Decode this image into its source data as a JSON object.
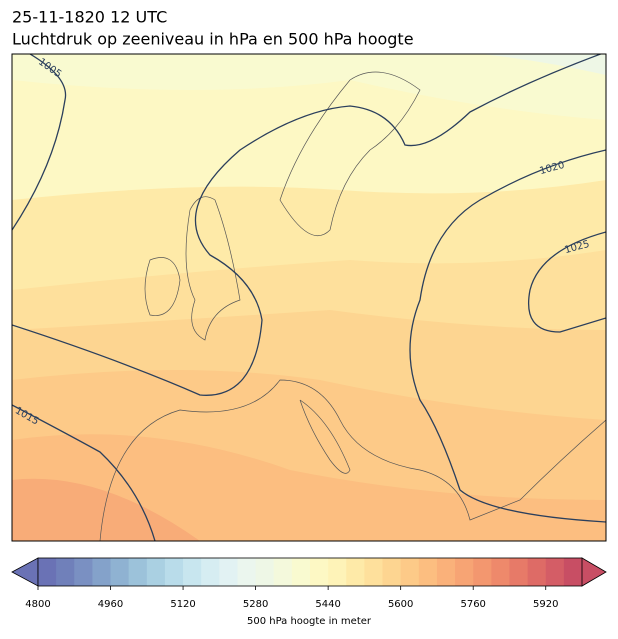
{
  "header": {
    "line1": "25-11-1820 12 UTC",
    "line2": "Luchtdruk op zeeniveau in hPa en 500 hPa hoogte"
  },
  "map": {
    "isobar_labels": [
      1005,
      1020,
      1025,
      1015
    ]
  },
  "colorbar": {
    "label": "500 hPa hoogte in meter",
    "lim": [
      4800,
      6000
    ],
    "ticks": [
      4800,
      4960,
      5120,
      5280,
      5440,
      5600,
      5760,
      5920
    ],
    "colors": [
      "#6a72b5",
      "#7080ba",
      "#7a90c2",
      "#84a2ca",
      "#8fb2d2",
      "#9cc2da",
      "#aad0e2",
      "#b9dcea",
      "#c8e6ef",
      "#d6edf2",
      "#e2f2f3",
      "#ebf6ee",
      "#eef7e6",
      "#f4f9dc",
      "#f9fad0",
      "#fdf8c4",
      "#fef3b8",
      "#feeaa8",
      "#fee09c",
      "#fdd591",
      "#fdca88",
      "#fcbe80",
      "#fab17a",
      "#f7a474",
      "#f3976f",
      "#ee896b",
      "#e77a68",
      "#de6b66",
      "#d45d66",
      "#c84e64"
    ]
  }
}
